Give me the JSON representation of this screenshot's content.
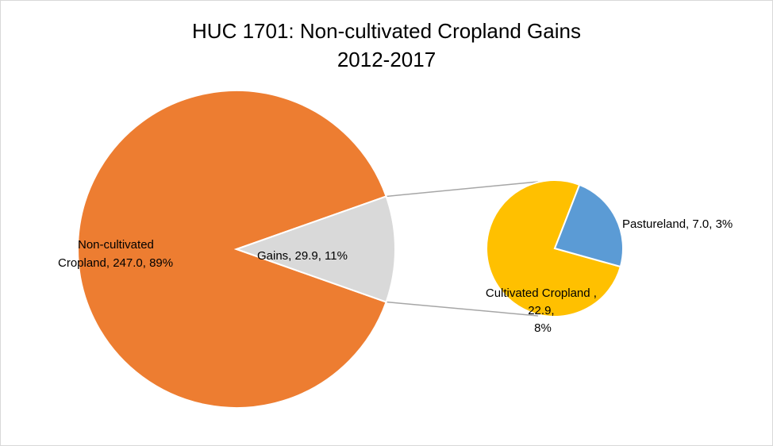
{
  "chart_data": {
    "type": "pie",
    "subtype": "bar-of-pie",
    "title_line1": "HUC 1701: Non-cultivated Cropland Gains",
    "title_line2": "2012-2017",
    "main_pie": [
      {
        "name": "Non-cultivated Cropland",
        "value": 247.0,
        "percent": "89%",
        "color": "#ED7D31",
        "label_lines": [
          "Non-cultivated",
          "Cropland, 247.0, 89%"
        ]
      },
      {
        "name": "Gains",
        "value": 29.9,
        "percent": "11%",
        "color": "#D9D9D9",
        "label_lines": [
          "Gains, 29.9, 11%"
        ]
      }
    ],
    "secondary_pie": [
      {
        "name": "Cultivated Cropland",
        "value": 22.9,
        "percent": "8%",
        "color": "#FFC000",
        "label_lines": [
          "Cultivated Cropland ,",
          "22.9,",
          "8%"
        ]
      },
      {
        "name": "Pastureland",
        "value": 7.0,
        "percent": "3%",
        "color": "#5B9BD5",
        "label_lines": [
          "Pastureland, 7.0, 3%"
        ]
      }
    ],
    "connector_color": "#A6A6A6"
  }
}
